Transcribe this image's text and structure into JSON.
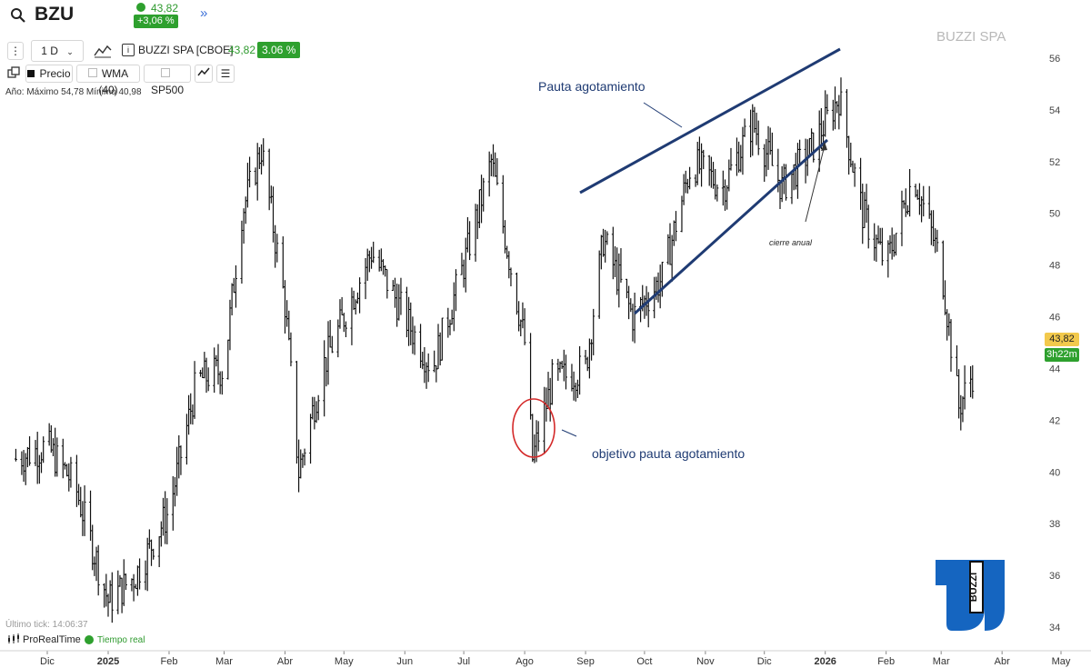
{
  "header": {
    "ticker": "BZU",
    "price": "43,82",
    "change": "+3,06 %",
    "expand_icon": "double-chevron-right-icon"
  },
  "toolbar": {
    "timeframe": "1 D",
    "instrument": "BUZZI SPA [CBOE]",
    "instrument_price": "43,82",
    "instrument_change": "3.06 %",
    "legend_items": [
      {
        "label": "Precio",
        "active": true
      },
      {
        "label": "WMA (40)",
        "active": false
      },
      {
        "label": "SP500",
        "active": false
      }
    ]
  },
  "stats": "Año: Máximo 54,78 Mínimo 40,98",
  "brand_label": "BUZZI SPA",
  "footer": {
    "last_tick": "Último tick: 14:06:37",
    "provider": "ProRealTime",
    "realtime": "Tiempo real"
  },
  "colors": {
    "up": "#2ea02e",
    "accent_blue": "#3a6fd8",
    "trendline": "#1f3b73",
    "circle": "#d42a2a",
    "price_tag": "#f2c94c",
    "logo_blue": "#1565c0"
  },
  "chart_data": {
    "type": "bar",
    "title": "BUZZI SPA",
    "ylim": [
      34,
      56.5
    ],
    "yticks": [
      "56",
      "54",
      "52",
      "50",
      "48",
      "46",
      "44",
      "42",
      "40",
      "38",
      "36",
      "34"
    ],
    "xticks": [
      "Dic",
      "2025",
      "Feb",
      "Mar",
      "Abr",
      "May",
      "Jun",
      "Jul",
      "Ago",
      "Sep",
      "Oct",
      "Nov",
      "Dic",
      "2026",
      "Feb",
      "Mar",
      "Abr",
      "May"
    ],
    "series": [
      {
        "name": "Precio",
        "x": [
          "2024-11-15",
          "2024-12-01",
          "2024-12-15",
          "2025-01-01",
          "2025-01-15",
          "2025-02-01",
          "2025-02-15",
          "2025-03-01",
          "2025-03-10",
          "2025-03-20",
          "2025-04-01",
          "2025-04-08",
          "2025-04-20",
          "2025-05-01",
          "2025-05-15",
          "2025-06-01",
          "2025-06-15",
          "2025-07-01",
          "2025-07-15",
          "2025-08-01",
          "2025-08-05",
          "2025-08-15",
          "2025-09-01",
          "2025-09-10",
          "2025-09-25",
          "2025-10-10",
          "2025-10-25",
          "2025-11-10",
          "2025-11-25",
          "2025-12-10",
          "2025-12-25",
          "2026-01-08",
          "2026-01-20",
          "2026-02-01",
          "2026-02-15",
          "2026-03-01",
          "2026-03-10",
          "2026-03-17"
        ],
        "close": [
          40.5,
          41,
          39.5,
          35,
          36,
          38.5,
          43.5,
          44,
          50,
          52.5,
          46.5,
          40,
          44,
          46,
          48.5,
          46,
          44,
          48,
          52,
          45,
          40.5,
          43.5,
          44,
          49,
          46,
          47.5,
          52,
          51,
          53.5,
          51,
          52.5,
          54.5,
          50,
          48,
          51.5,
          48,
          42.5,
          43.8
        ]
      }
    ],
    "annotations": [
      {
        "text": "Pauta agotamiento"
      },
      {
        "text": "objetivo pauta agotamiento"
      },
      {
        "text": "cierre anual"
      }
    ]
  }
}
